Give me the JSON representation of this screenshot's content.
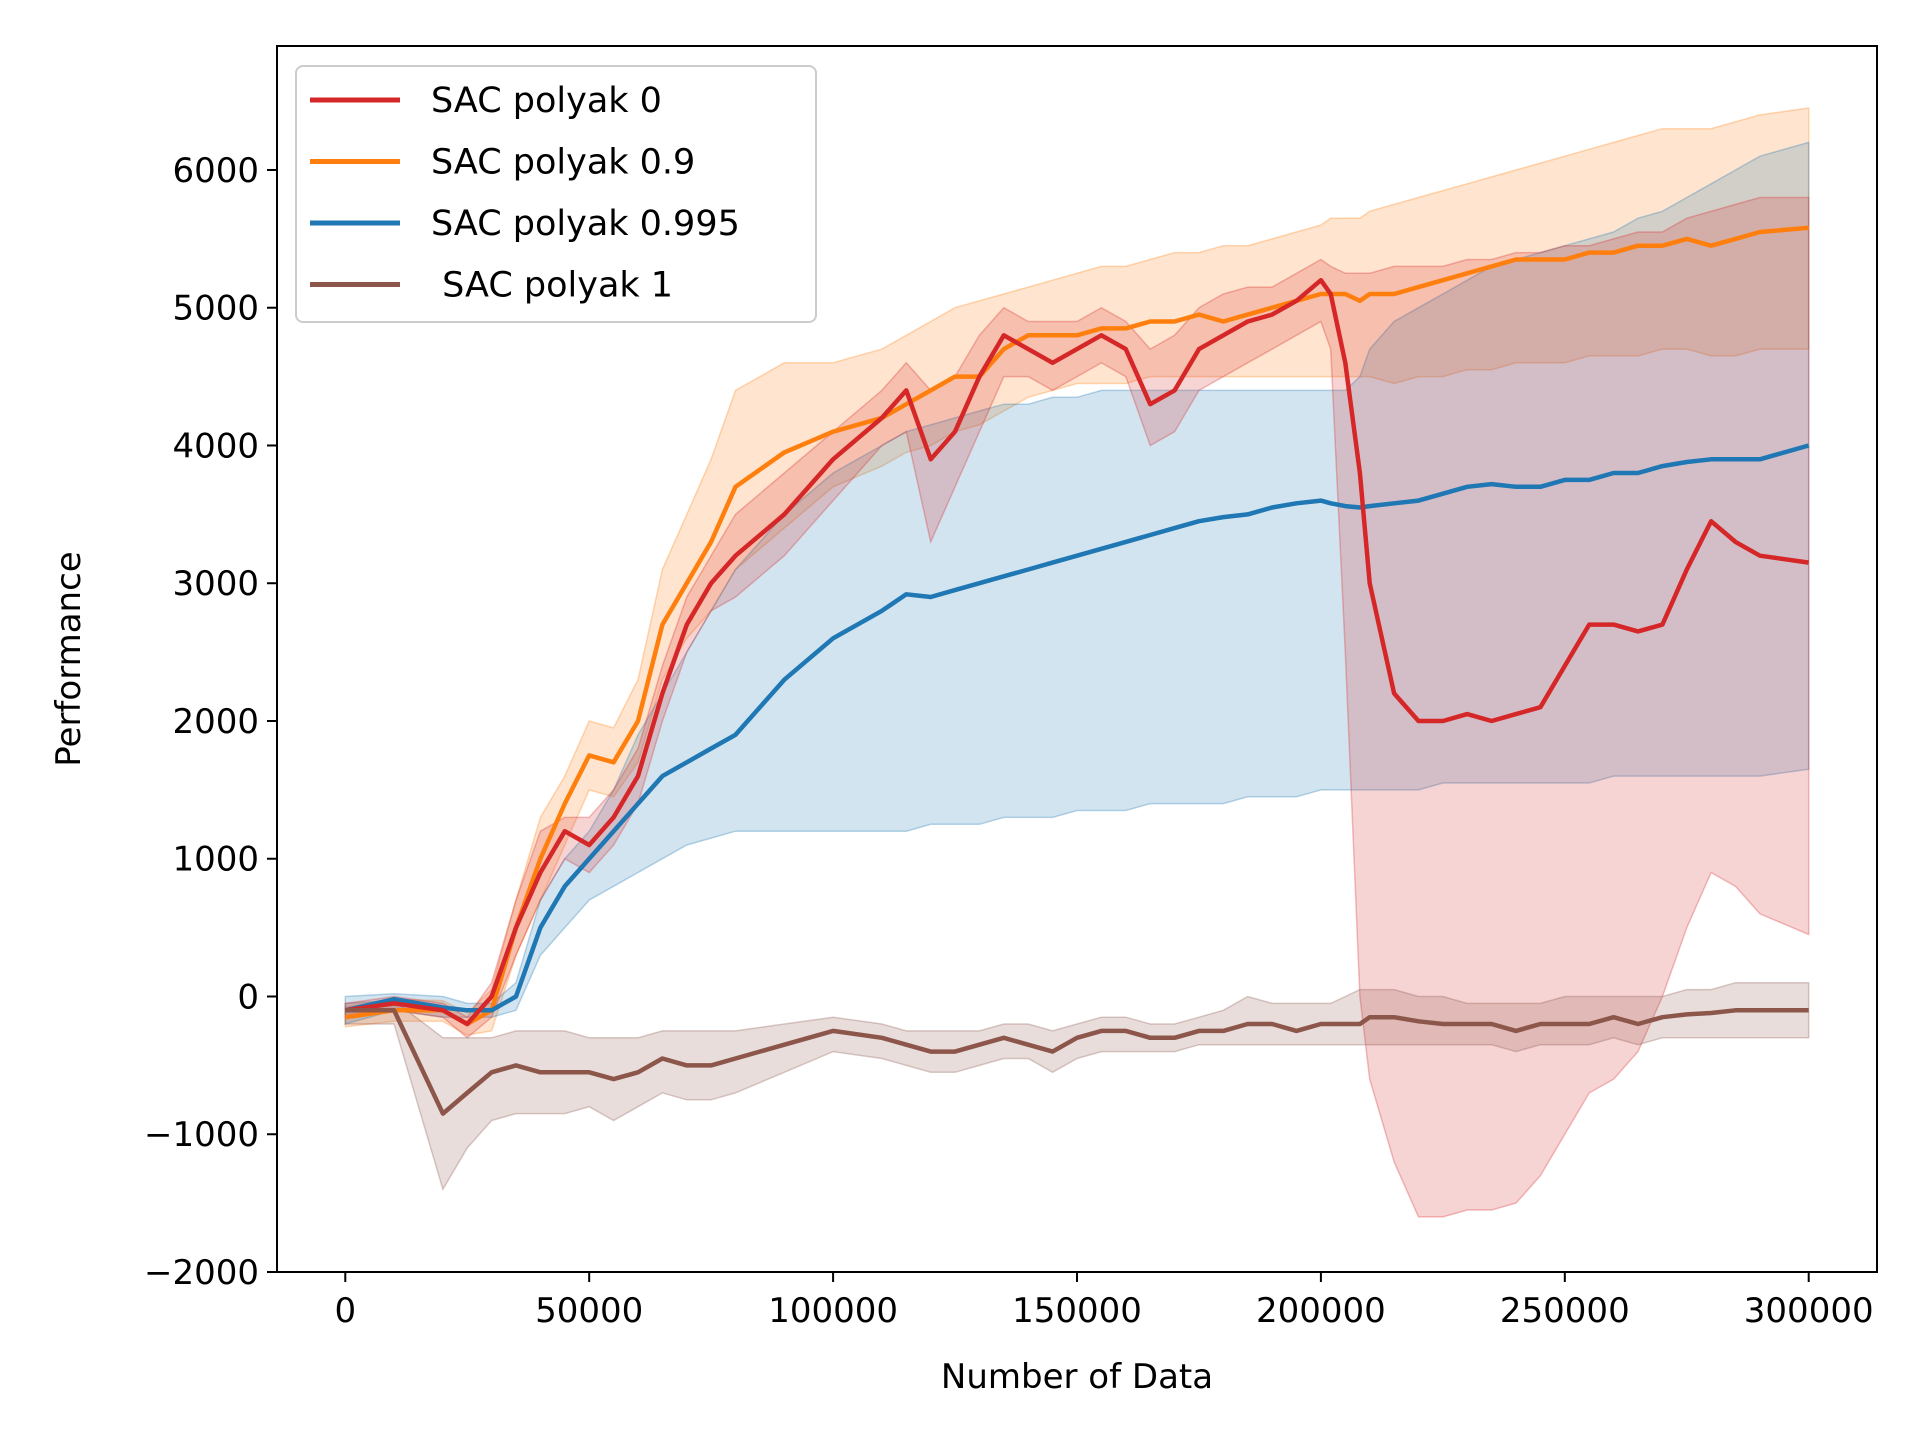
{
  "chart_data": {
    "type": "line",
    "title": "",
    "xlabel": "Number of Data",
    "ylabel": "Performance",
    "xlim": [
      -14000,
      314000
    ],
    "ylim": [
      -2000,
      6900
    ],
    "xticks": [
      0,
      50000,
      100000,
      150000,
      200000,
      250000,
      300000
    ],
    "xtick_labels": [
      "0",
      "50000",
      "100000",
      "150000",
      "200000",
      "250000",
      "300000"
    ],
    "yticks": [
      -2000,
      -1000,
      0,
      1000,
      2000,
      3000,
      4000,
      5000,
      6000
    ],
    "ytick_labels": [
      "−2000",
      "−1000",
      "0",
      "1000",
      "2000",
      "3000",
      "4000",
      "5000",
      "6000"
    ],
    "grid": false,
    "legend_position": "top-left",
    "x": [
      0,
      10000,
      20000,
      25000,
      30000,
      35000,
      40000,
      45000,
      50000,
      55000,
      60000,
      65000,
      70000,
      75000,
      80000,
      90000,
      100000,
      110000,
      115000,
      120000,
      125000,
      130000,
      135000,
      140000,
      145000,
      150000,
      155000,
      160000,
      165000,
      170000,
      175000,
      180000,
      185000,
      190000,
      195000,
      200000,
      202000,
      205000,
      208000,
      210000,
      215000,
      220000,
      225000,
      230000,
      235000,
      240000,
      245000,
      250000,
      255000,
      260000,
      265000,
      270000,
      275000,
      280000,
      285000,
      290000,
      300000
    ],
    "series": [
      {
        "name": "SAC polyak 0",
        "color": "#d62728",
        "values": [
          -100,
          -50,
          -100,
          -200,
          0,
          500,
          900,
          1200,
          1100,
          1300,
          1600,
          2200,
          2700,
          3000,
          3200,
          3500,
          3900,
          4200,
          4400,
          3900,
          4100,
          4500,
          4800,
          4700,
          4600,
          4700,
          4800,
          4700,
          4300,
          4400,
          4700,
          4800,
          4900,
          4950,
          5050,
          5200,
          5100,
          4600,
          3800,
          3000,
          2200,
          2000,
          2000,
          2050,
          2000,
          2050,
          2100,
          2400,
          2700,
          2700,
          2650,
          2700,
          3100,
          3450,
          3300,
          3200,
          3150
        ],
        "upper": [
          -50,
          0,
          -50,
          -150,
          100,
          700,
          1200,
          1300,
          1300,
          1500,
          1800,
          2400,
          2900,
          3200,
          3500,
          3800,
          4100,
          4400,
          4600,
          4400,
          4500,
          4800,
          5000,
          4900,
          4900,
          4900,
          5000,
          4900,
          4700,
          4800,
          5000,
          5100,
          5150,
          5150,
          5250,
          5350,
          5300,
          5250,
          5250,
          5250,
          5300,
          5300,
          5300,
          5350,
          5350,
          5400,
          5400,
          5450,
          5450,
          5500,
          5550,
          5550,
          5650,
          5700,
          5750,
          5800,
          5800
        ],
        "lower": [
          -150,
          -100,
          -150,
          -300,
          -150,
          300,
          700,
          1000,
          900,
          1100,
          1400,
          2000,
          2500,
          2800,
          2900,
          3200,
          3600,
          4000,
          4100,
          3300,
          3700,
          4100,
          4500,
          4500,
          4400,
          4500,
          4600,
          4500,
          4000,
          4100,
          4400,
          4500,
          4600,
          4700,
          4800,
          4900,
          4700,
          2500,
          0,
          -600,
          -1200,
          -1600,
          -1600,
          -1550,
          -1550,
          -1500,
          -1300,
          -1000,
          -700,
          -600,
          -400,
          0,
          500,
          900,
          800,
          600,
          450
        ]
      },
      {
        "name": "SAC polyak 0.9",
        "color": "#ff7f0e",
        "values": [
          -150,
          -100,
          -100,
          -200,
          -100,
          500,
          1000,
          1400,
          1750,
          1700,
          2000,
          2700,
          3000,
          3300,
          3700,
          3950,
          4100,
          4200,
          4300,
          4400,
          4500,
          4500,
          4700,
          4800,
          4800,
          4800,
          4850,
          4850,
          4900,
          4900,
          4950,
          4900,
          4950,
          5000,
          5050,
          5100,
          5100,
          5100,
          5050,
          5100,
          5100,
          5150,
          5200,
          5250,
          5300,
          5350,
          5350,
          5350,
          5400,
          5400,
          5450,
          5450,
          5500,
          5450,
          5500,
          5550,
          5580
        ],
        "upper": [
          -80,
          -20,
          -30,
          -120,
          50,
          700,
          1300,
          1600,
          2000,
          1950,
          2300,
          3100,
          3500,
          3900,
          4400,
          4600,
          4600,
          4700,
          4800,
          4900,
          5000,
          5050,
          5100,
          5150,
          5200,
          5250,
          5300,
          5300,
          5350,
          5400,
          5400,
          5450,
          5450,
          5500,
          5550,
          5600,
          5650,
          5650,
          5650,
          5700,
          5750,
          5800,
          5850,
          5900,
          5950,
          6000,
          6050,
          6100,
          6150,
          6200,
          6250,
          6300,
          6300,
          6300,
          6350,
          6400,
          6450
        ],
        "lower": [
          -220,
          -180,
          -180,
          -280,
          -250,
          300,
          700,
          1100,
          1500,
          1450,
          1700,
          2300,
          2600,
          2800,
          3100,
          3400,
          3700,
          3850,
          3950,
          4000,
          4100,
          4150,
          4250,
          4350,
          4400,
          4450,
          4450,
          4450,
          4500,
          4500,
          4500,
          4500,
          4500,
          4500,
          4500,
          4500,
          4500,
          4500,
          4500,
          4500,
          4450,
          4500,
          4500,
          4550,
          4550,
          4600,
          4600,
          4600,
          4650,
          4650,
          4650,
          4700,
          4700,
          4650,
          4650,
          4700,
          4700
        ]
      },
      {
        "name": "SAC polyak 0.995",
        "color": "#1f77b4",
        "values": [
          -100,
          -20,
          -80,
          -100,
          -100,
          0,
          500,
          800,
          1000,
          1200,
          1400,
          1600,
          1700,
          1800,
          1900,
          2300,
          2600,
          2800,
          2920,
          2900,
          2950,
          3000,
          3050,
          3100,
          3150,
          3200,
          3250,
          3300,
          3350,
          3400,
          3450,
          3480,
          3500,
          3550,
          3580,
          3600,
          3580,
          3560,
          3550,
          3560,
          3580,
          3600,
          3650,
          3700,
          3720,
          3700,
          3700,
          3750,
          3750,
          3800,
          3800,
          3850,
          3880,
          3900,
          3900,
          3900,
          4000
        ],
        "upper": [
          0,
          20,
          0,
          -50,
          -50,
          100,
          700,
          1000,
          1200,
          1500,
          1900,
          2200,
          2500,
          2800,
          3100,
          3500,
          3800,
          4000,
          4100,
          4150,
          4200,
          4250,
          4300,
          4300,
          4350,
          4350,
          4400,
          4400,
          4400,
          4400,
          4400,
          4400,
          4400,
          4400,
          4400,
          4400,
          4400,
          4400,
          4500,
          4700,
          4900,
          5000,
          5100,
          5200,
          5300,
          5350,
          5400,
          5450,
          5500,
          5550,
          5650,
          5700,
          5800,
          5900,
          6000,
          6100,
          6200
        ],
        "lower": [
          -200,
          -100,
          -150,
          -150,
          -150,
          -100,
          300,
          500,
          700,
          800,
          900,
          1000,
          1100,
          1150,
          1200,
          1200,
          1200,
          1200,
          1200,
          1250,
          1250,
          1250,
          1300,
          1300,
          1300,
          1350,
          1350,
          1350,
          1400,
          1400,
          1400,
          1400,
          1450,
          1450,
          1450,
          1500,
          1500,
          1500,
          1500,
          1500,
          1500,
          1500,
          1550,
          1550,
          1550,
          1550,
          1550,
          1550,
          1550,
          1600,
          1600,
          1600,
          1600,
          1600,
          1600,
          1600,
          1650
        ]
      },
      {
        "name": " SAC polyak 1",
        "color": "#8c564b",
        "values": [
          -100,
          -100,
          -850,
          -700,
          -550,
          -500,
          -550,
          -550,
          -550,
          -600,
          -550,
          -450,
          -500,
          -500,
          -450,
          -350,
          -250,
          -300,
          -350,
          -400,
          -400,
          -350,
          -300,
          -350,
          -400,
          -300,
          -250,
          -250,
          -300,
          -300,
          -250,
          -250,
          -200,
          -200,
          -250,
          -200,
          -200,
          -200,
          -200,
          -150,
          -150,
          -180,
          -200,
          -200,
          -200,
          -250,
          -200,
          -200,
          -200,
          -150,
          -200,
          -150,
          -130,
          -120,
          -100,
          -100,
          -100
        ],
        "upper": [
          -50,
          -30,
          -300,
          -300,
          -300,
          -250,
          -250,
          -250,
          -300,
          -300,
          -300,
          -250,
          -250,
          -250,
          -250,
          -200,
          -150,
          -200,
          -250,
          -250,
          -250,
          -250,
          -200,
          -200,
          -250,
          -200,
          -150,
          -150,
          -200,
          -200,
          -150,
          -100,
          0,
          -50,
          -50,
          -50,
          -50,
          0,
          50,
          50,
          50,
          0,
          0,
          -50,
          -50,
          -50,
          -50,
          0,
          0,
          0,
          0,
          0,
          50,
          50,
          100,
          100,
          100
        ],
        "lower": [
          -200,
          -200,
          -1400,
          -1100,
          -900,
          -850,
          -850,
          -850,
          -800,
          -900,
          -800,
          -700,
          -750,
          -750,
          -700,
          -550,
          -400,
          -450,
          -500,
          -550,
          -550,
          -500,
          -450,
          -450,
          -550,
          -450,
          -400,
          -400,
          -400,
          -400,
          -350,
          -350,
          -350,
          -350,
          -350,
          -350,
          -350,
          -350,
          -350,
          -350,
          -350,
          -350,
          -350,
          -350,
          -350,
          -400,
          -350,
          -350,
          -350,
          -300,
          -350,
          -300,
          -300,
          -300,
          -300,
          -300,
          -300
        ]
      }
    ]
  }
}
